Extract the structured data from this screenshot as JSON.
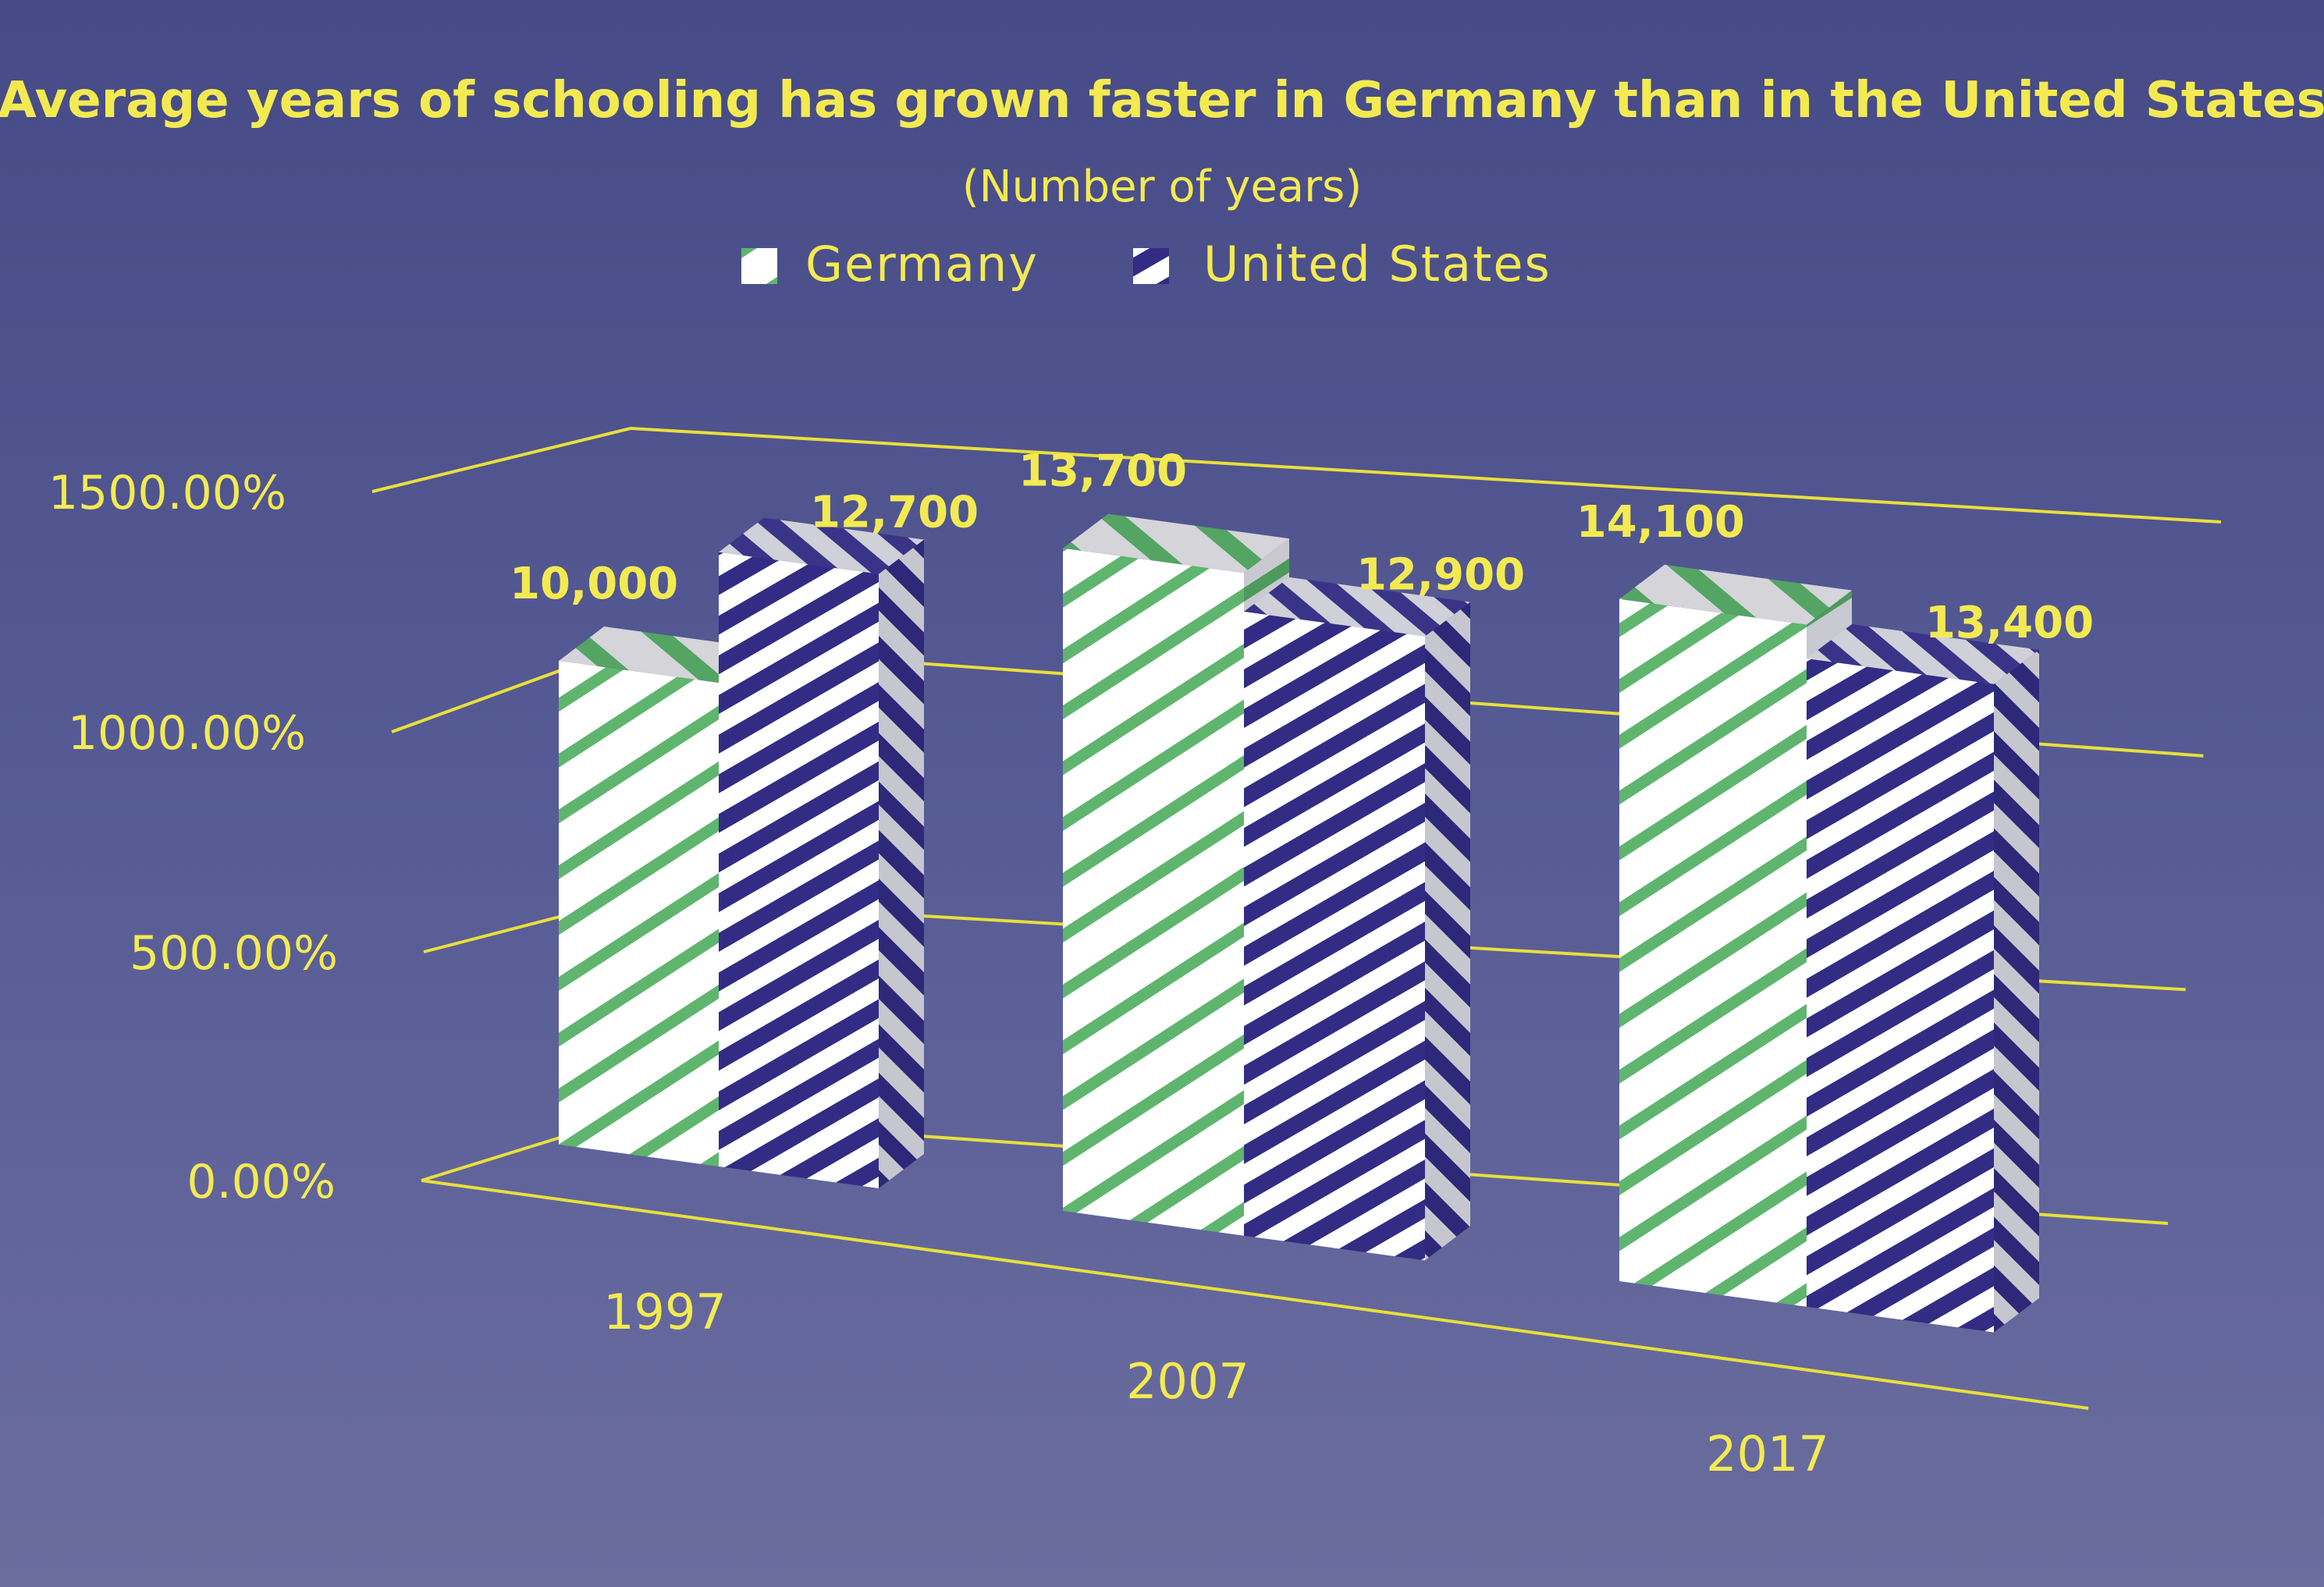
{
  "chart_data": {
    "type": "bar",
    "title": "Average years of schooling has grown faster in Germany than in the United States",
    "subtitle": "(Number of years)",
    "categories": [
      "1997",
      "2007",
      "2017"
    ],
    "series": [
      {
        "name": "Germany",
        "values": [
          10000,
          13700,
          14100
        ],
        "labels": [
          "10,000",
          "13,700",
          "14,100"
        ]
      },
      {
        "name": "United States",
        "values": [
          12700,
          12900,
          13400
        ],
        "labels": [
          "12,700",
          "12,900",
          "13,400"
        ]
      }
    ],
    "y_ticks": [
      "0.00%",
      "500.00%",
      "1000.00%",
      "1500.00%"
    ],
    "ylim": [
      0,
      15
    ],
    "legend_position": "top-center",
    "grid": true,
    "colors": {
      "text": "#f3ea52",
      "axis": "#e8df3c",
      "germany_stripe": "#5fb56e",
      "us_stripe": "#322c84",
      "bar_base": "#ffffff",
      "bar_side_base": "#c6c6cf"
    }
  }
}
